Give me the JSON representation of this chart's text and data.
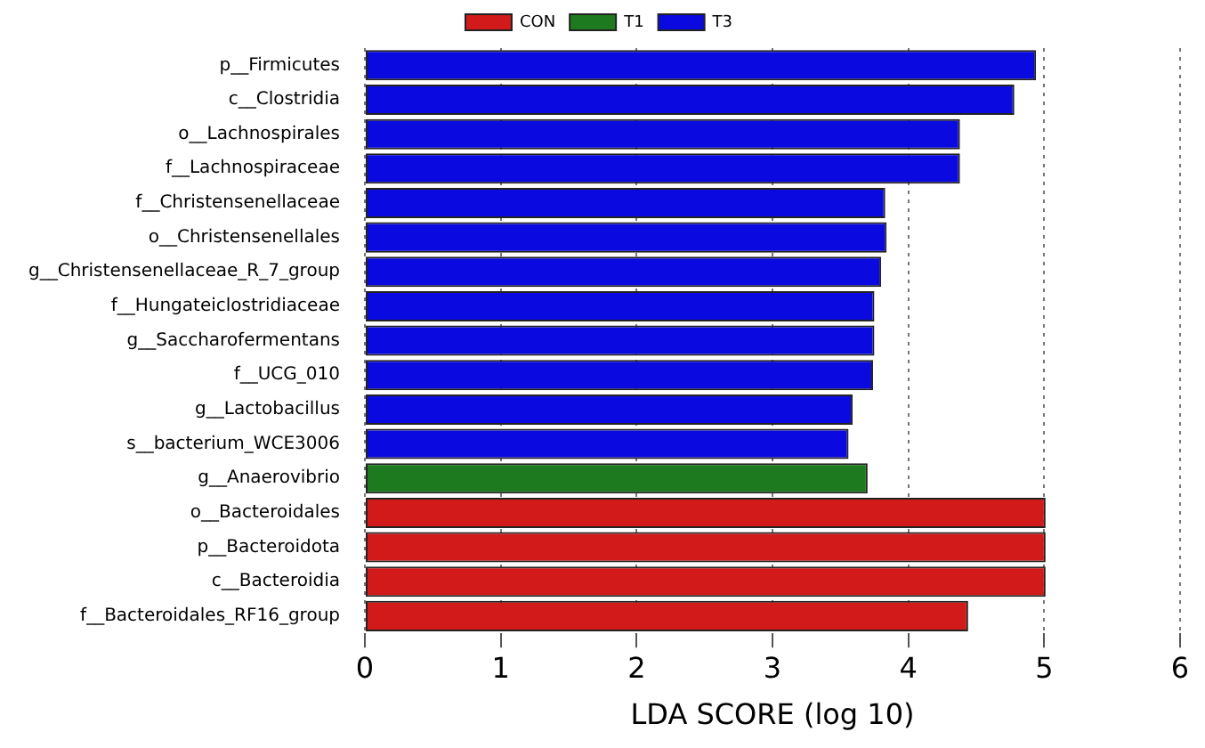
{
  "chart_data": {
    "type": "bar",
    "orientation": "horizontal",
    "xlabel": "LDA SCORE (log 10)",
    "categories": [
      "p__Firmicutes",
      "c__Clostridia",
      "o__Lachnospirales",
      "f__Lachnospiraceae",
      "f__Christensenellaceae",
      "o__Christensenellales",
      "g__Christensenellaceae_R_7_group",
      "f__Hungateiclostridiaceae",
      "g__Saccharofermentans",
      "f__UCG_010",
      "g__Lactobacillus",
      "s__bacterium_WCE3006",
      "g__Anaerovibrio",
      "o__Bacteroidales",
      "p__Bacteroidota",
      "c__Bacteroidia",
      "f__Bacteroidales_RF16_group"
    ],
    "series": [
      {
        "name": "CON",
        "color": "#d21a1a",
        "values": [
          null,
          null,
          null,
          null,
          null,
          null,
          null,
          null,
          null,
          null,
          null,
          null,
          null,
          5.01,
          5.01,
          5.01,
          4.44
        ]
      },
      {
        "name": "T1",
        "color": "#1e7a1e",
        "values": [
          null,
          null,
          null,
          null,
          null,
          null,
          null,
          null,
          null,
          null,
          null,
          null,
          3.7,
          null,
          null,
          null,
          null
        ]
      },
      {
        "name": "T3",
        "color": "#0a0ae0",
        "values": [
          4.94,
          4.78,
          4.38,
          4.38,
          3.83,
          3.84,
          3.8,
          3.75,
          3.75,
          3.74,
          3.59,
          3.56,
          null,
          null,
          null,
          null,
          null
        ]
      }
    ],
    "stacked": true,
    "xlim": [
      0,
      6
    ],
    "xticks": [
      0,
      1,
      2,
      3,
      4,
      5,
      6
    ],
    "grid": "x",
    "legend": "top"
  }
}
